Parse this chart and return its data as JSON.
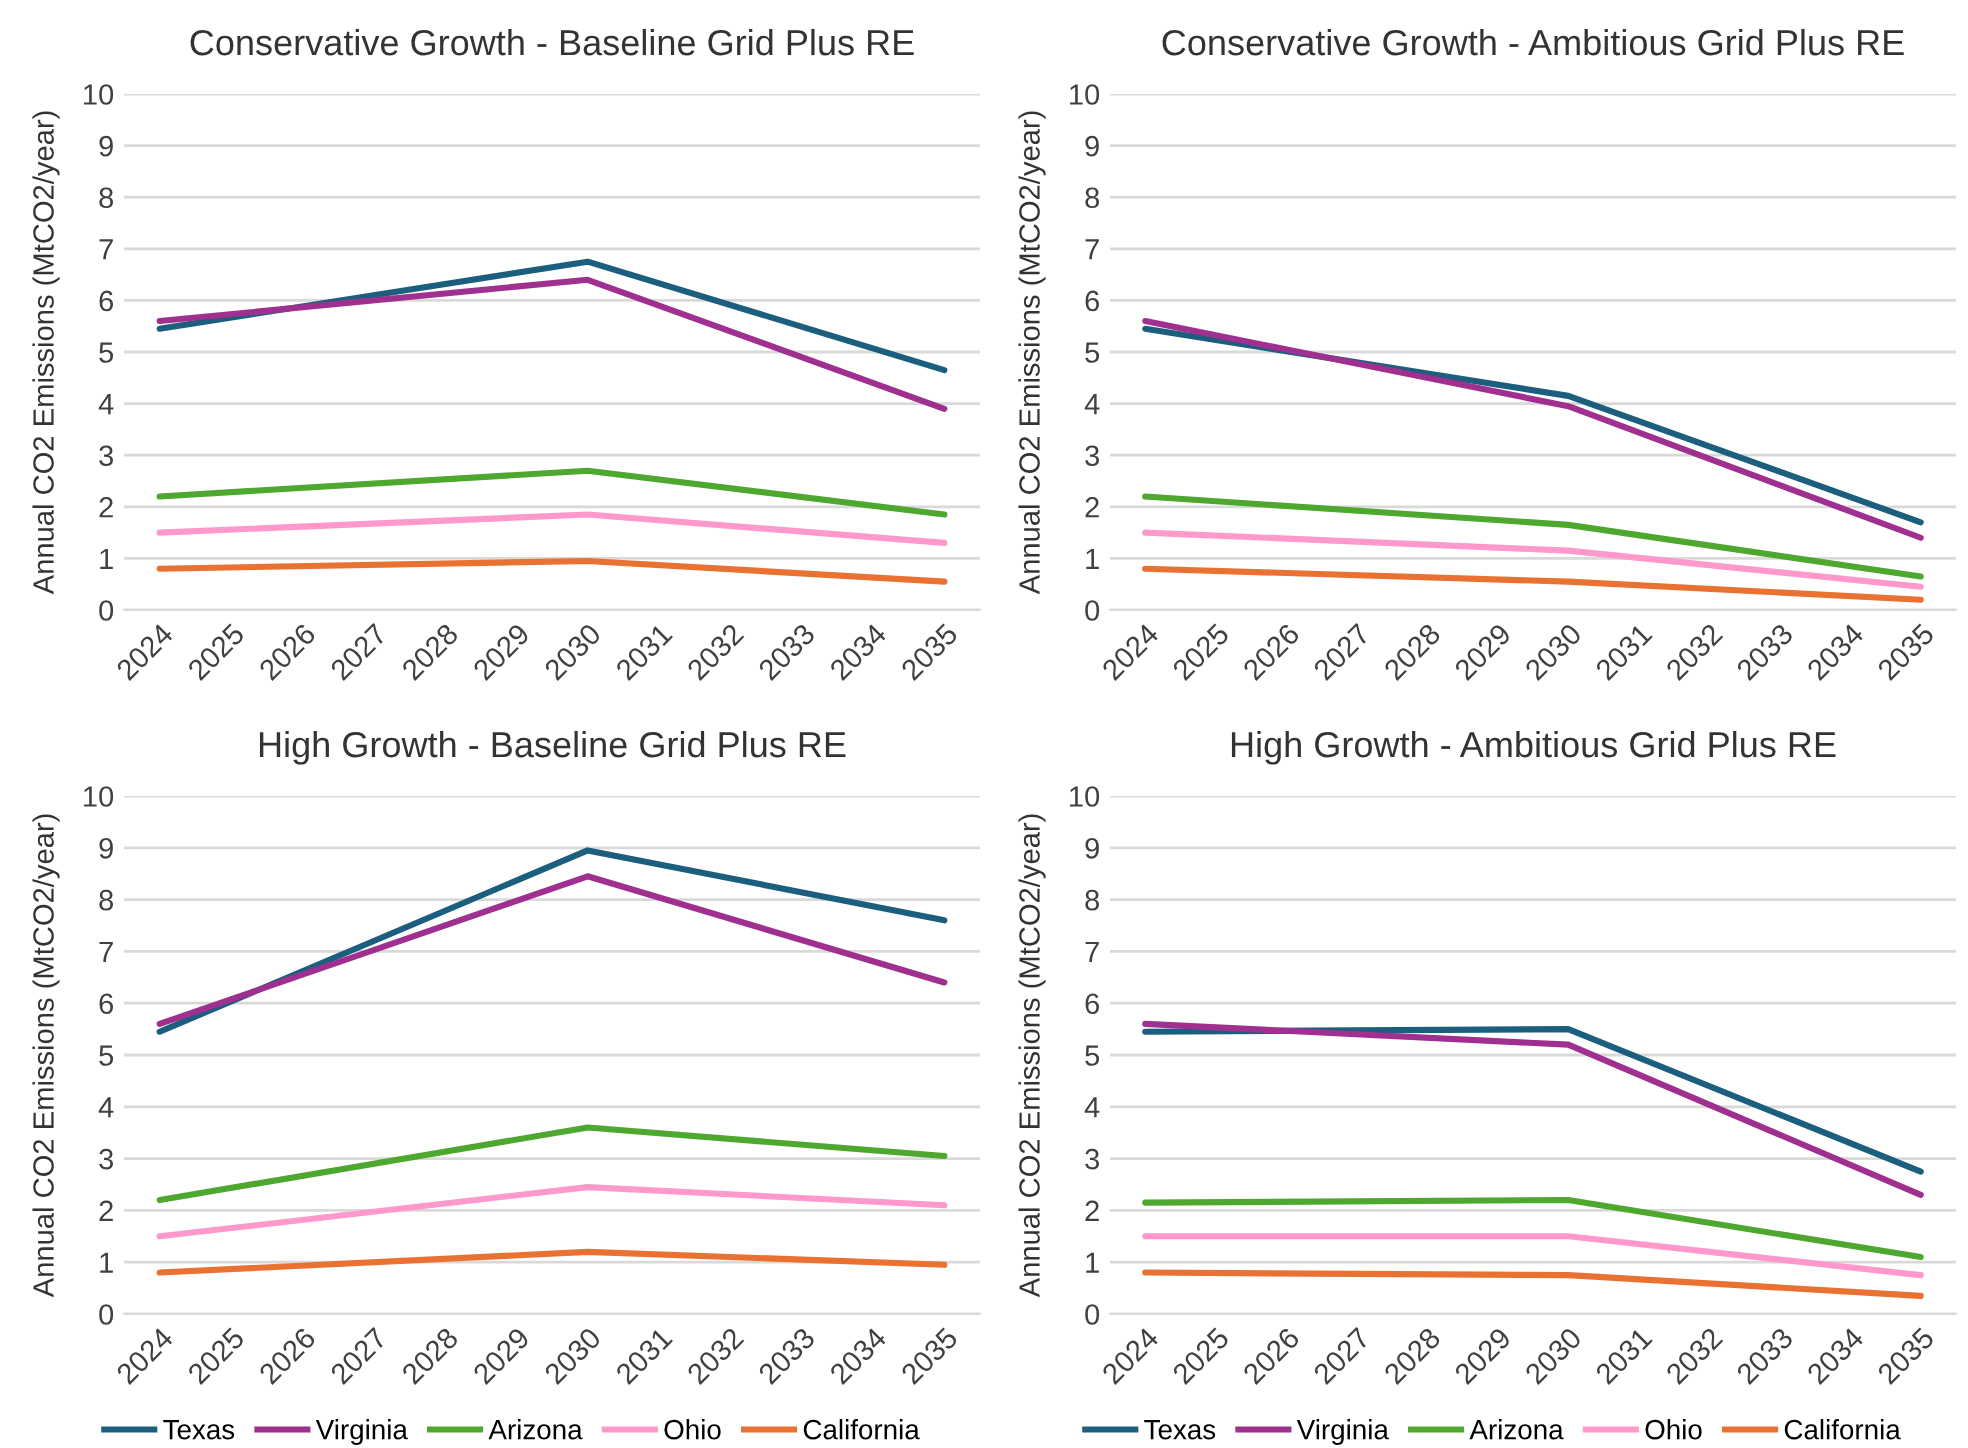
{
  "chart_data": [
    {
      "type": "line",
      "title": "Conservative Growth - Baseline Grid Plus RE",
      "ylabel": "Annual CO2 Emissions (MtCO2/year)",
      "xlim": [
        2023.5,
        2035.5
      ],
      "xticks": [
        2024,
        2025,
        2026,
        2027,
        2028,
        2029,
        2030,
        2031,
        2032,
        2033,
        2034,
        2035
      ],
      "ylim": [
        0,
        10
      ],
      "yticks": [
        0,
        1,
        2,
        3,
        4,
        5,
        6,
        7,
        8,
        9,
        10
      ],
      "grid": "y",
      "x": [
        2024,
        2030,
        2035
      ],
      "series": [
        {
          "color": "#1b5e7e",
          "values": [
            5.45,
            6.75,
            4.65
          ]
        },
        {
          "color": "#a0308f",
          "values": [
            5.6,
            6.4,
            3.9
          ]
        },
        {
          "color": "#4ea72e",
          "values": [
            2.2,
            2.7,
            1.85
          ]
        },
        {
          "color": "#ff99cc",
          "values": [
            1.5,
            1.85,
            1.3
          ]
        },
        {
          "color": "#e97132",
          "values": [
            0.8,
            0.95,
            0.55
          ]
        }
      ]
    },
    {
      "type": "line",
      "title": "Conservative Growth - Ambitious Grid Plus RE",
      "ylabel": "Annual CO2 Emissions (MtCO2/year)",
      "xlim": [
        2023.5,
        2035.5
      ],
      "xticks": [
        2024,
        2025,
        2026,
        2027,
        2028,
        2029,
        2030,
        2031,
        2032,
        2033,
        2034,
        2035
      ],
      "ylim": [
        0,
        10
      ],
      "yticks": [
        0,
        1,
        2,
        3,
        4,
        5,
        6,
        7,
        8,
        9,
        10
      ],
      "grid": "y",
      "x": [
        2024,
        2030,
        2035
      ],
      "series": [
        {
          "color": "#1b5e7e",
          "values": [
            5.45,
            4.15,
            1.7
          ]
        },
        {
          "color": "#a0308f",
          "values": [
            5.6,
            3.95,
            1.4
          ]
        },
        {
          "color": "#4ea72e",
          "values": [
            2.2,
            1.65,
            0.65
          ]
        },
        {
          "color": "#ff99cc",
          "values": [
            1.5,
            1.15,
            0.45
          ]
        },
        {
          "color": "#e97132",
          "values": [
            0.8,
            0.55,
            0.2
          ]
        }
      ]
    },
    {
      "type": "line",
      "title": "High Growth - Baseline Grid Plus RE",
      "ylabel": "Annual CO2 Emissions (MtCO2/year)",
      "xlim": [
        2023.5,
        2035.5
      ],
      "xticks": [
        2024,
        2025,
        2026,
        2027,
        2028,
        2029,
        2030,
        2031,
        2032,
        2033,
        2034,
        2035
      ],
      "ylim": [
        0,
        10
      ],
      "yticks": [
        0,
        1,
        2,
        3,
        4,
        5,
        6,
        7,
        8,
        9,
        10
      ],
      "grid": "y",
      "legend": "bottom",
      "x": [
        2024,
        2030,
        2035
      ],
      "series": [
        {
          "name": "Texas",
          "color": "#1b5e7e",
          "values": [
            5.45,
            8.95,
            7.6
          ]
        },
        {
          "name": "Virginia",
          "color": "#a0308f",
          "values": [
            5.6,
            8.45,
            6.4
          ]
        },
        {
          "name": "Arizona",
          "color": "#4ea72e",
          "values": [
            2.2,
            3.6,
            3.05
          ]
        },
        {
          "name": "Ohio",
          "color": "#ff99cc",
          "values": [
            1.5,
            2.45,
            2.1
          ]
        },
        {
          "name": "California",
          "color": "#e97132",
          "values": [
            0.8,
            1.2,
            0.95
          ]
        }
      ]
    },
    {
      "type": "line",
      "title": "High Growth - Ambitious Grid Plus RE",
      "ylabel": "Annual CO2 Emissions (MtCO2/year)",
      "xlim": [
        2023.5,
        2035.5
      ],
      "xticks": [
        2024,
        2025,
        2026,
        2027,
        2028,
        2029,
        2030,
        2031,
        2032,
        2033,
        2034,
        2035
      ],
      "ylim": [
        0,
        10
      ],
      "yticks": [
        0,
        1,
        2,
        3,
        4,
        5,
        6,
        7,
        8,
        9,
        10
      ],
      "grid": "y",
      "legend": "bottom",
      "x": [
        2024,
        2030,
        2035
      ],
      "series": [
        {
          "name": "Texas",
          "color": "#1b5e7e",
          "values": [
            5.45,
            5.5,
            2.75
          ]
        },
        {
          "name": "Virginia",
          "color": "#a0308f",
          "values": [
            5.6,
            5.2,
            2.3
          ]
        },
        {
          "name": "Arizona",
          "color": "#4ea72e",
          "values": [
            2.15,
            2.2,
            1.1
          ]
        },
        {
          "name": "Ohio",
          "color": "#ff99cc",
          "values": [
            1.5,
            1.5,
            0.75
          ]
        },
        {
          "name": "California",
          "color": "#e97132",
          "values": [
            0.8,
            0.75,
            0.35
          ]
        }
      ]
    }
  ]
}
